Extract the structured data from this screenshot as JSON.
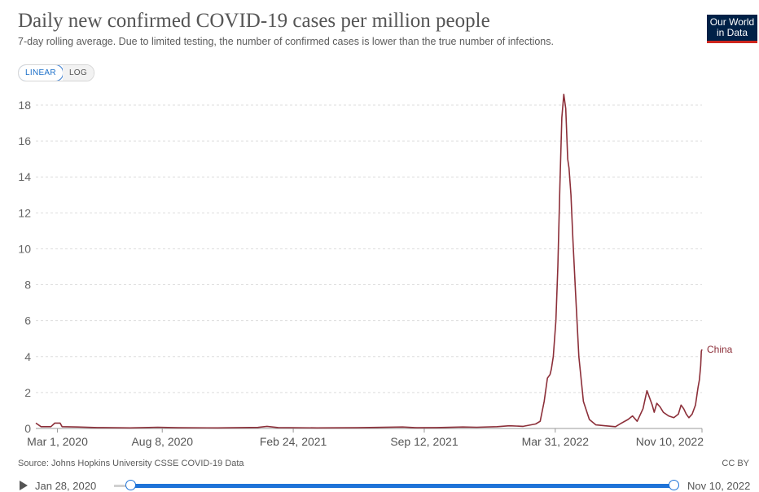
{
  "header": {
    "title": "Daily new confirmed COVID-19 cases per million people",
    "subtitle": "7-day rolling average. Due to limited testing, the number of confirmed cases is lower than the true number of infections.",
    "logo_line1": "Our World",
    "logo_line2": "in Data"
  },
  "controls": {
    "scale_linear": "LINEAR",
    "scale_log": "LOG",
    "selected_scale": "LINEAR"
  },
  "footer": {
    "source": "Source: Johns Hopkins University CSSE COVID-19 Data",
    "license": "CC BY"
  },
  "timeline": {
    "start_label": "Jan 28, 2020",
    "end_label": "Nov 10, 2022"
  },
  "colors": {
    "series": "#8c2f39",
    "grid": "#dddddd",
    "timeline": "#1e73d8"
  },
  "chart_data": {
    "type": "line",
    "title": "Daily new confirmed COVID-19 cases per million people",
    "xlabel": "",
    "ylabel": "",
    "ylim": [
      0,
      18
    ],
    "y_ticks": [
      0,
      2,
      4,
      6,
      8,
      10,
      12,
      14,
      16,
      18
    ],
    "x_range": [
      "2020-01-28",
      "2022-11-10"
    ],
    "x_ticks": [
      {
        "date": "2020-03-01",
        "label": "Mar 1, 2020"
      },
      {
        "date": "2020-08-08",
        "label": "Aug 8, 2020"
      },
      {
        "date": "2021-02-24",
        "label": "Feb 24, 2021"
      },
      {
        "date": "2021-09-12",
        "label": "Sep 12, 2021"
      },
      {
        "date": "2022-03-31",
        "label": "Mar 31, 2022"
      },
      {
        "date": "2022-11-10",
        "label": "Nov 10, 2022"
      }
    ],
    "grid": true,
    "legend": "end-label",
    "series": [
      {
        "name": "China",
        "points": [
          [
            "2020-01-28",
            0.3
          ],
          [
            "2020-02-05",
            0.1
          ],
          [
            "2020-02-20",
            0.1
          ],
          [
            "2020-02-26",
            0.3
          ],
          [
            "2020-03-05",
            0.3
          ],
          [
            "2020-03-08",
            0.1
          ],
          [
            "2020-04-01",
            0.08
          ],
          [
            "2020-05-01",
            0.05
          ],
          [
            "2020-06-20",
            0.03
          ],
          [
            "2020-08-01",
            0.07
          ],
          [
            "2020-09-01",
            0.04
          ],
          [
            "2020-11-01",
            0.03
          ],
          [
            "2021-01-01",
            0.06
          ],
          [
            "2021-01-15",
            0.12
          ],
          [
            "2021-02-01",
            0.05
          ],
          [
            "2021-04-01",
            0.03
          ],
          [
            "2021-06-01",
            0.04
          ],
          [
            "2021-08-10",
            0.08
          ],
          [
            "2021-09-01",
            0.04
          ],
          [
            "2021-10-01",
            0.05
          ],
          [
            "2021-11-10",
            0.08
          ],
          [
            "2021-12-01",
            0.07
          ],
          [
            "2022-01-01",
            0.1
          ],
          [
            "2022-01-20",
            0.15
          ],
          [
            "2022-02-10",
            0.12
          ],
          [
            "2022-03-01",
            0.25
          ],
          [
            "2022-03-08",
            0.4
          ],
          [
            "2022-03-14",
            1.5
          ],
          [
            "2022-03-19",
            2.8
          ],
          [
            "2022-03-23",
            3.0
          ],
          [
            "2022-03-25",
            3.3
          ],
          [
            "2022-03-28",
            4.0
          ],
          [
            "2022-04-01",
            6.0
          ],
          [
            "2022-04-04",
            9.0
          ],
          [
            "2022-04-07",
            13.5
          ],
          [
            "2022-04-10",
            17.3
          ],
          [
            "2022-04-13",
            18.6
          ],
          [
            "2022-04-16",
            17.8
          ],
          [
            "2022-04-19",
            15.0
          ],
          [
            "2022-04-21",
            14.5
          ],
          [
            "2022-04-24",
            13.0
          ],
          [
            "2022-04-27",
            10.5
          ],
          [
            "2022-05-01",
            7.5
          ],
          [
            "2022-05-06",
            4.0
          ],
          [
            "2022-05-13",
            1.5
          ],
          [
            "2022-05-22",
            0.5
          ],
          [
            "2022-06-01",
            0.2
          ],
          [
            "2022-06-15",
            0.15
          ],
          [
            "2022-07-01",
            0.1
          ],
          [
            "2022-07-10",
            0.3
          ],
          [
            "2022-07-20",
            0.5
          ],
          [
            "2022-07-27",
            0.7
          ],
          [
            "2022-08-03",
            0.4
          ],
          [
            "2022-08-12",
            1.1
          ],
          [
            "2022-08-18",
            2.1
          ],
          [
            "2022-08-22",
            1.7
          ],
          [
            "2022-08-26",
            1.3
          ],
          [
            "2022-08-29",
            0.9
          ],
          [
            "2022-09-02",
            1.4
          ],
          [
            "2022-09-07",
            1.2
          ],
          [
            "2022-09-12",
            0.9
          ],
          [
            "2022-09-20",
            0.7
          ],
          [
            "2022-09-28",
            0.6
          ],
          [
            "2022-10-05",
            0.8
          ],
          [
            "2022-10-09",
            1.3
          ],
          [
            "2022-10-13",
            1.1
          ],
          [
            "2022-10-17",
            0.8
          ],
          [
            "2022-10-21",
            0.6
          ],
          [
            "2022-10-26",
            0.8
          ],
          [
            "2022-10-31",
            1.3
          ],
          [
            "2022-11-04",
            2.3
          ],
          [
            "2022-11-06",
            2.7
          ],
          [
            "2022-11-08",
            3.5
          ],
          [
            "2022-11-09",
            4.3
          ],
          [
            "2022-11-10",
            4.4
          ]
        ]
      }
    ]
  }
}
